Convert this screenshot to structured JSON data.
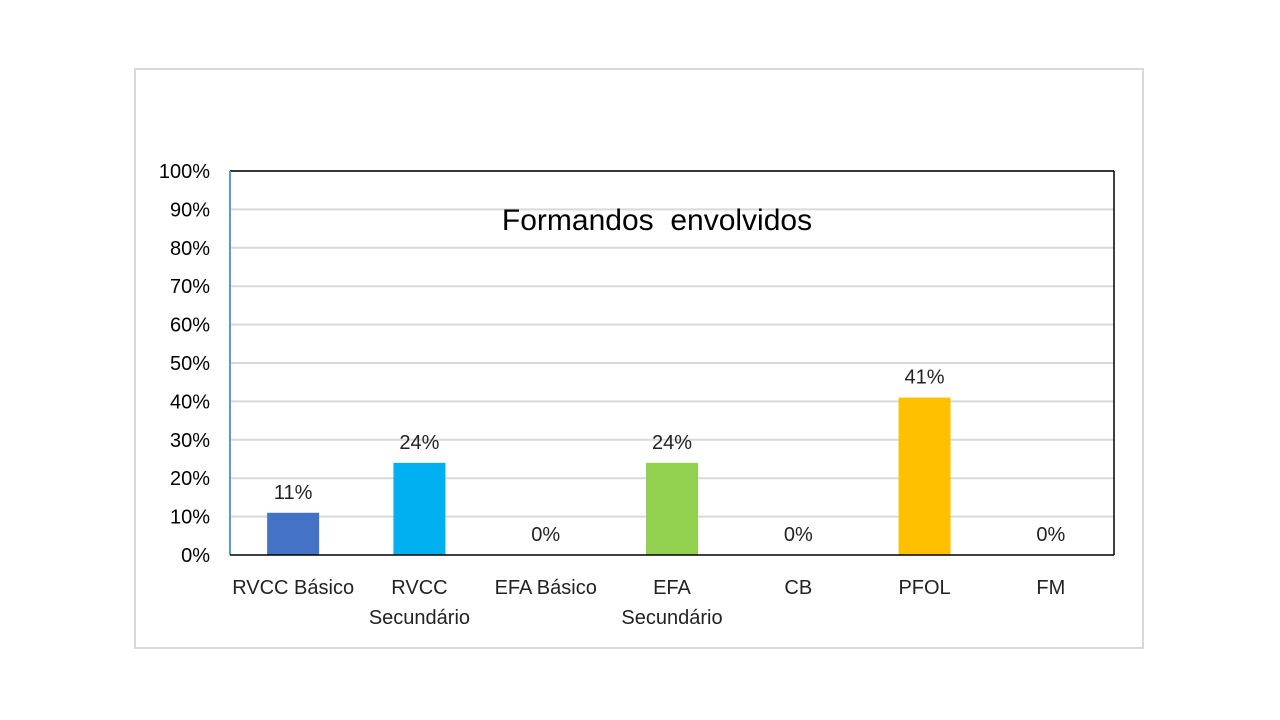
{
  "chart_data": {
    "type": "bar",
    "title": "Formandos  envolvidos",
    "categories": [
      [
        "RVCC Básico"
      ],
      [
        "RVCC",
        "Secundário"
      ],
      [
        "EFA Básico"
      ],
      [
        "EFA",
        "Secundário"
      ],
      [
        "CB"
      ],
      [
        "PFOL"
      ],
      [
        "FM"
      ]
    ],
    "values": [
      11,
      24,
      0,
      24,
      0,
      41,
      0
    ],
    "value_labels": [
      "11%",
      "24%",
      "0%",
      "24%",
      "0%",
      "41%",
      "0%"
    ],
    "colors": [
      "#4472C4",
      "#00B0F0",
      "#A5A5A5",
      "#92D050",
      "#ED7D31",
      "#FFC000",
      "#5B9BD5"
    ],
    "ylim": [
      0,
      100
    ],
    "yticks": [
      0,
      10,
      20,
      30,
      40,
      50,
      60,
      70,
      80,
      90,
      100
    ],
    "ytick_labels": [
      "0%",
      "10%",
      "20%",
      "30%",
      "40%",
      "50%",
      "60%",
      "70%",
      "80%",
      "90%",
      "100%"
    ],
    "xlabel": "",
    "ylabel": "",
    "grid": true,
    "legend": "none"
  }
}
